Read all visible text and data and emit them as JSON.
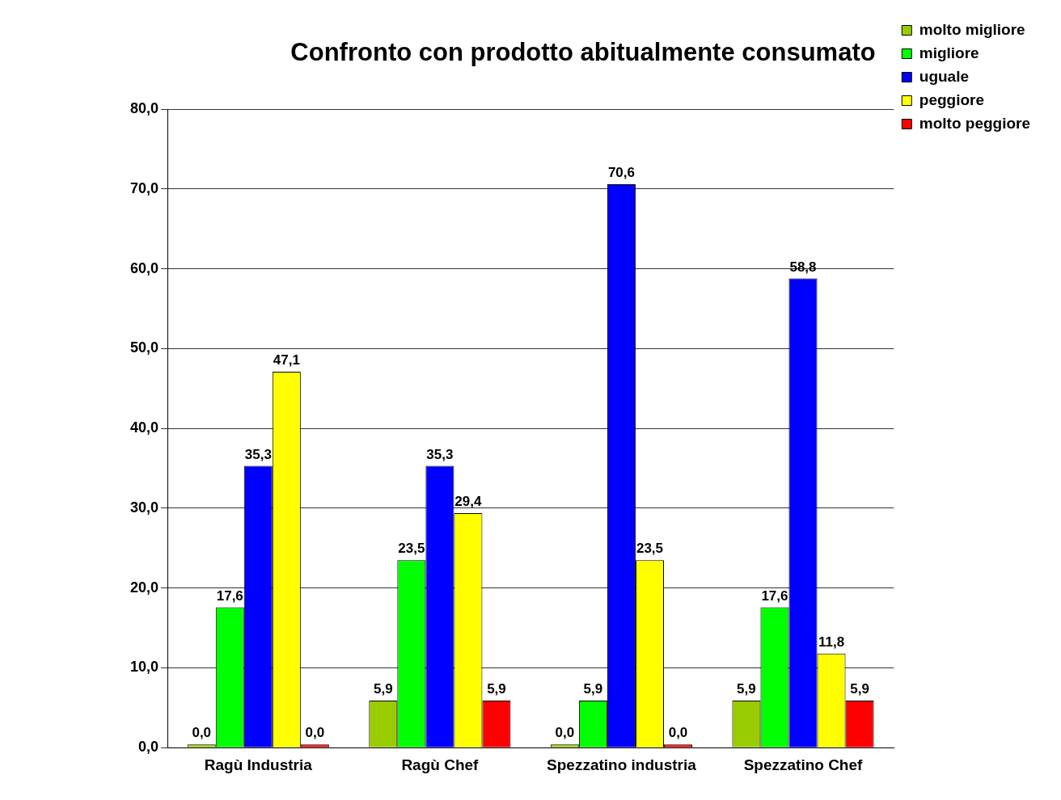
{
  "chart_data": {
    "type": "bar",
    "title": "Confronto con prodotto abitualmente consumato",
    "categories": [
      "Ragù Industria",
      "Ragù Chef",
      "Spezzatino industria",
      "Spezzatino Chef"
    ],
    "series": [
      {
        "name": "molto migliore",
        "color": "#99cc00",
        "values": [
          0.0,
          5.9,
          0.0,
          5.9
        ],
        "value_labels": [
          "0,0",
          "5,9",
          "0,0",
          "5,9"
        ]
      },
      {
        "name": "migliore",
        "color": "#00ff00",
        "values": [
          17.6,
          23.5,
          5.9,
          17.6
        ],
        "value_labels": [
          "17,6",
          "23,5",
          "5,9",
          "17,6"
        ]
      },
      {
        "name": "uguale",
        "color": "#0000ff",
        "values": [
          35.3,
          35.3,
          70.6,
          58.8
        ],
        "value_labels": [
          "35,3",
          "35,3",
          "70,6",
          "58,8"
        ]
      },
      {
        "name": "peggiore",
        "color": "#ffff00",
        "values": [
          47.1,
          29.4,
          23.5,
          11.8
        ],
        "value_labels": [
          "47,1",
          "29,4",
          "23,5",
          "11,8"
        ]
      },
      {
        "name": "molto peggiore",
        "color": "#ff0000",
        "values": [
          0.0,
          5.9,
          0.0,
          5.9
        ],
        "value_labels": [
          "0,0",
          "5,9",
          "0,0",
          "5,9"
        ]
      }
    ],
    "ylim": [
      0,
      80
    ],
    "yticks": [
      {
        "value": 0,
        "label": "0,0"
      },
      {
        "value": 10,
        "label": "10,0"
      },
      {
        "value": 20,
        "label": "20,0"
      },
      {
        "value": 30,
        "label": "30,0"
      },
      {
        "value": 40,
        "label": "40,0"
      },
      {
        "value": 50,
        "label": "50,0"
      },
      {
        "value": 60,
        "label": "60,0"
      },
      {
        "value": 70,
        "label": "70,0"
      },
      {
        "value": 80,
        "label": "80,0"
      }
    ],
    "grid": "y",
    "legend": "top right"
  }
}
